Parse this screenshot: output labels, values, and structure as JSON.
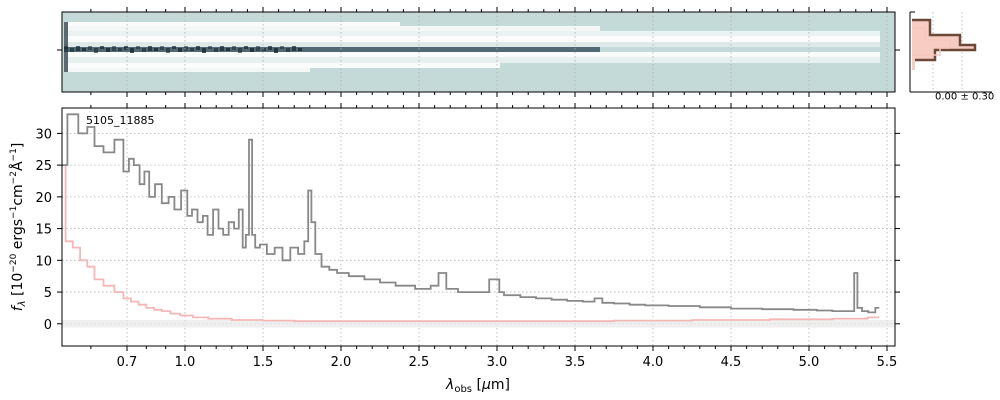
{
  "chart_data": {
    "type": "line",
    "object_label": "5105_11885",
    "xlabel": "λ_obs [μm]",
    "ylabel": "f_λ [10^-20 erg s^-1 cm^-2 Å^-1]",
    "ylim": [
      -3.5,
      34
    ],
    "ylim_display_note": "",
    "yticks": [
      0,
      5,
      10,
      15,
      20,
      25,
      30
    ],
    "xticks": [
      0.7,
      1.0,
      1.5,
      2.0,
      2.5,
      3.0,
      3.5,
      4.0,
      4.5,
      5.0,
      5.5
    ],
    "xtick_labels": [
      "0.7",
      "1.0",
      "1.5",
      "2.0",
      "2.5",
      "3.0",
      "3.5",
      "4.0",
      "4.5",
      "5.0",
      "5.5"
    ],
    "grid": true,
    "series": [
      {
        "color": "#888888",
        "style": "steps",
        "x": [
          0.52,
          0.55,
          0.58,
          0.6,
          0.62,
          0.65,
          0.68,
          0.7,
          0.72,
          0.75,
          0.78,
          0.8,
          0.83,
          0.86,
          0.9,
          0.93,
          0.96,
          1.0,
          1.03,
          1.06,
          1.1,
          1.13,
          1.16,
          1.2,
          1.23,
          1.26,
          1.3,
          1.33,
          1.36,
          1.38,
          1.4,
          1.42,
          1.44,
          1.46,
          1.5,
          1.55,
          1.6,
          1.65,
          1.7,
          1.75,
          1.78,
          1.8,
          1.82,
          1.85,
          1.9,
          1.95,
          2.0,
          2.1,
          2.2,
          2.3,
          2.4,
          2.55,
          2.6,
          2.65,
          2.7,
          2.8,
          2.9,
          3.0,
          3.03,
          3.06,
          3.1,
          3.2,
          3.3,
          3.4,
          3.5,
          3.6,
          3.65,
          3.7,
          3.8,
          3.9,
          4.0,
          4.2,
          4.4,
          4.6,
          4.8,
          5.0,
          5.1,
          5.2,
          5.28,
          5.3,
          5.32,
          5.36,
          5.4,
          5.45
        ],
        "y": [
          25,
          33,
          30,
          31,
          28,
          27,
          29,
          24,
          26,
          25,
          22,
          24,
          20,
          22,
          19,
          20,
          18,
          21,
          17,
          18,
          16,
          17,
          14,
          18,
          15,
          14,
          16,
          15,
          18,
          12,
          14,
          29,
          14,
          12,
          12.5,
          11,
          12,
          10,
          12,
          11,
          13,
          21,
          16,
          11,
          9,
          8.5,
          8,
          7.5,
          7,
          6.5,
          6,
          5.5,
          6,
          8,
          5.5,
          5,
          5,
          7,
          5,
          4.5,
          4.5,
          4.2,
          4,
          3.8,
          3.6,
          3.5,
          4,
          3.3,
          3.2,
          3,
          2.9,
          2.8,
          2.6,
          2.4,
          2.3,
          2.2,
          2.1,
          2.0,
          2.0,
          8,
          2.5,
          2.0,
          1.8,
          2.5
        ]
      },
      {
        "color": "#f4b8b8",
        "style": "steps",
        "x": [
          0.52,
          0.54,
          0.56,
          0.58,
          0.6,
          0.62,
          0.65,
          0.68,
          0.7,
          0.74,
          0.78,
          0.82,
          0.86,
          0.9,
          0.95,
          1.0,
          1.1,
          1.2,
          1.4,
          1.6,
          1.8,
          2.0,
          2.5,
          3.0,
          3.5,
          4.0,
          4.5,
          5.0,
          5.3,
          5.45
        ],
        "y": [
          25,
          13,
          12,
          10,
          9,
          7,
          6,
          5,
          4,
          3.5,
          3,
          2.5,
          2.2,
          2,
          1.6,
          1.3,
          1,
          0.8,
          0.6,
          0.5,
          0.4,
          0.4,
          0.4,
          0.4,
          0.4,
          0.5,
          0.6,
          0.7,
          0.8,
          1.0
        ]
      }
    ],
    "side_panel": {
      "label": "0.00 ± 0.30"
    },
    "colors": {
      "spectrum": "#888888",
      "error": "#f4b8b8",
      "image_bg": "#c3dad8",
      "profile_dark": "#6b4838",
      "profile_light": "#f5c6bd"
    }
  }
}
